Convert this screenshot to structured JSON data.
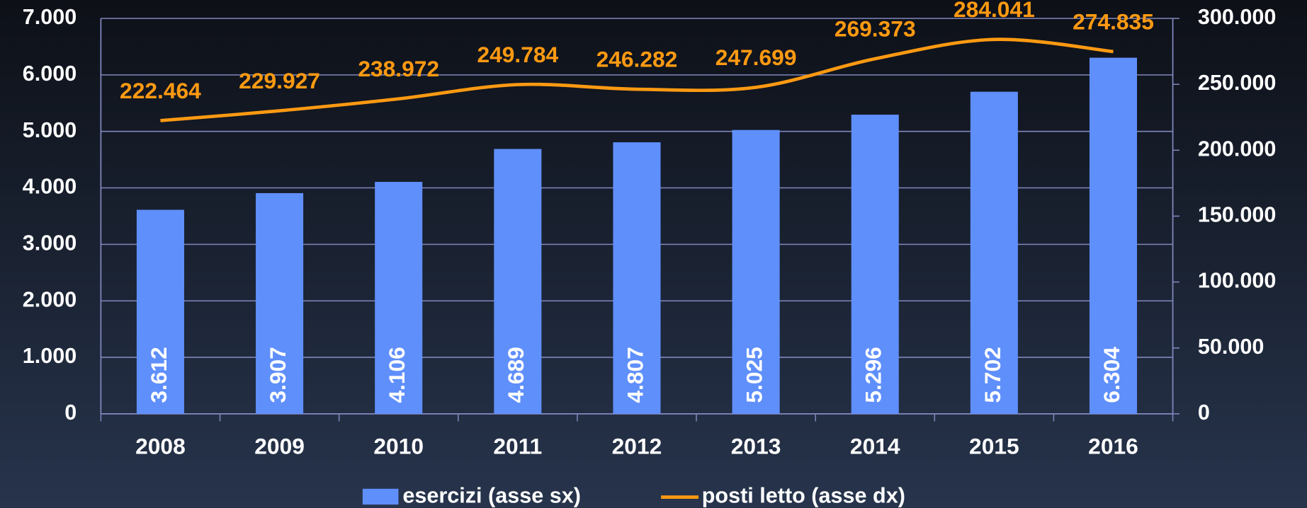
{
  "chart_data": {
    "type": "bar_line",
    "categories": [
      "2008",
      "2009",
      "2010",
      "2011",
      "2012",
      "2013",
      "2014",
      "2015",
      "2016"
    ],
    "series": [
      {
        "name": "esercizi (asse sx)",
        "color": "#5f8ffb",
        "type": "bar",
        "values": [
          3612,
          3907,
          4106,
          4689,
          4807,
          5025,
          5296,
          5702,
          6304
        ],
        "value_labels": [
          "3.612",
          "3.907",
          "4.106",
          "4.689",
          "4.807",
          "5.025",
          "5.296",
          "5.702",
          "6.304"
        ]
      },
      {
        "name": "posti letto (asse dx)",
        "color": "#ff9a12",
        "type": "line",
        "axis": "y2",
        "values": [
          222464,
          229927,
          238972,
          249784,
          246282,
          247699,
          269373,
          284041,
          274835
        ],
        "value_labels": [
          "222.464",
          "229.927",
          "238.972",
          "249.784",
          "246.282",
          "247.699",
          "269.373",
          "284.041",
          "274.835"
        ]
      }
    ],
    "ylim": [
      0,
      7000
    ],
    "yticks": [
      0,
      {
        "value": 1000,
        "label": "1.000"
      },
      {
        "value": 2000,
        "label": "2.000"
      },
      {
        "value": 3000,
        "label": "3.000"
      },
      {
        "value": 4000,
        "label": "4.000"
      },
      {
        "value": 5000,
        "label": "5.000"
      },
      {
        "value": 6000,
        "label": "6.000"
      },
      {
        "value": 7000,
        "label": "7.000"
      }
    ],
    "y2lim": [
      0,
      300000
    ],
    "y2ticks": [
      0,
      {
        "value": 50000,
        "label": "50.000"
      },
      {
        "value": 100000,
        "label": "100.000"
      },
      {
        "value": 150000,
        "label": "150.000"
      },
      {
        "value": 200000,
        "label": "200.000"
      },
      {
        "value": 250000,
        "label": "250.000"
      },
      {
        "value": 300000,
        "label": "300.000"
      }
    ],
    "grid": true,
    "legend": "bottom"
  }
}
